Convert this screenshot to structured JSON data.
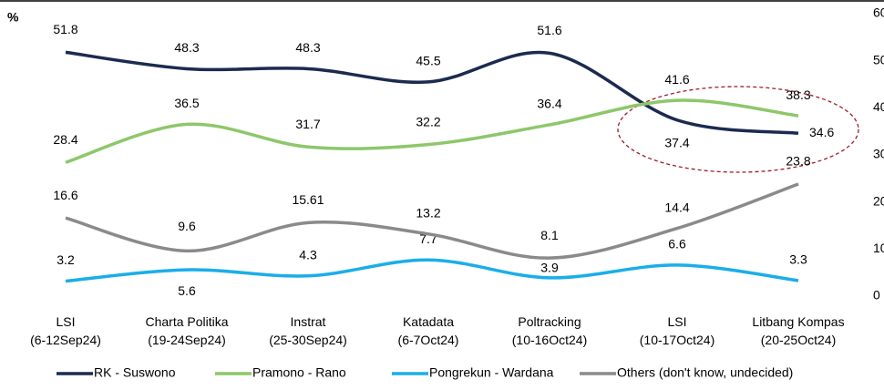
{
  "chart_data": {
    "type": "line",
    "y_label": "%",
    "categories": [
      "LSI\n(6-12Sep24)",
      "Charta Politika\n(19-24Sep24)",
      "Instrat\n(25-30Sep24)",
      "Katadata\n(6-7Oct24)",
      "Poltracking\n(10-16Oct24)",
      "LSI\n(10-17Oct24)",
      "Litbang Kompas\n(20-25Oct24)"
    ],
    "series": [
      {
        "name": "RK - Suswono",
        "color": "#1b2a4f",
        "values": [
          51.8,
          48.3,
          48.3,
          45.5,
          51.6,
          37.4,
          34.6
        ]
      },
      {
        "name": "Pramono - Rano",
        "color": "#8dc76a",
        "values": [
          28.4,
          36.5,
          31.7,
          32.2,
          36.4,
          41.6,
          38.3
        ]
      },
      {
        "name": "Pongrekun - Wardana",
        "color": "#1aaee8",
        "values": [
          3.2,
          5.6,
          4.3,
          7.7,
          3.9,
          6.6,
          3.3
        ]
      },
      {
        "name": "Others (don't know, undecided)",
        "color": "#8a8a8a",
        "values": [
          16.6,
          9.6,
          15.61,
          13.2,
          8.1,
          14.4,
          23.8
        ]
      }
    ],
    "ylim": [
      0,
      60
    ],
    "yticks": [
      0,
      10,
      20,
      30,
      40,
      50,
      60
    ],
    "legend": "bottom"
  }
}
